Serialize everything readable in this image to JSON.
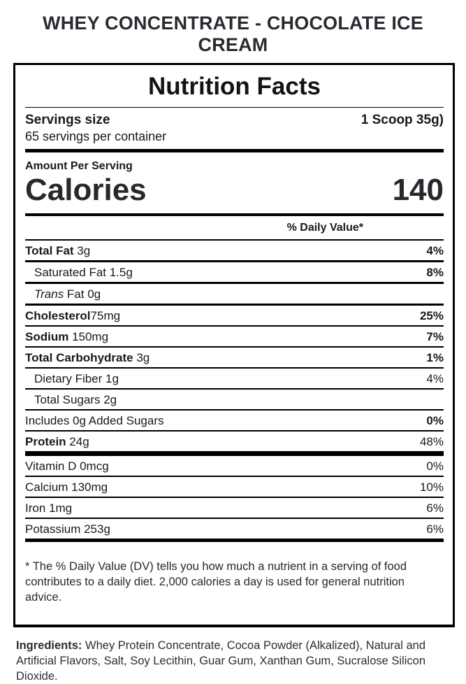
{
  "colors": {
    "background": "#ffffff",
    "text": "#17191c",
    "heading": "#282b30",
    "rule": "#000000"
  },
  "product_title": "WHEY CONCENTRATE - CHOCOLATE ICE CREAM",
  "label": {
    "title": "Nutrition Facts",
    "servings_size_label": "Servings size",
    "serving_size_value": "1 Scoop 35g)",
    "servings_per_container": "65 servings per container",
    "amount_per_serving": "Amount Per Serving",
    "calories_label": "Calories",
    "calories_value": "140",
    "daily_value_header": "% Daily Value*",
    "nutrient_rows": [
      {
        "lead": "Total Fat",
        "lead_bold": true,
        "lead_italic": false,
        "rest": " 3g",
        "dv": "4%",
        "dv_bold": true,
        "indent": false
      },
      {
        "lead": "Saturated Fat 1.5g",
        "lead_bold": false,
        "lead_italic": false,
        "rest": "",
        "dv": "8%",
        "dv_bold": true,
        "indent": true
      },
      {
        "lead": "Trans",
        "lead_bold": false,
        "lead_italic": true,
        "rest": " Fat 0g",
        "dv": "",
        "dv_bold": false,
        "indent": true
      },
      {
        "lead": "Cholesterol",
        "lead_bold": true,
        "lead_italic": false,
        "rest": "75mg",
        "dv": "25%",
        "dv_bold": true,
        "indent": false
      },
      {
        "lead": "Sodium",
        "lead_bold": true,
        "lead_italic": false,
        "rest": " 150mg",
        "dv": "7%",
        "dv_bold": true,
        "indent": false
      },
      {
        "lead": "Total Carbohydrate",
        "lead_bold": true,
        "lead_italic": false,
        "rest": " 3g",
        "dv": "1%",
        "dv_bold": true,
        "indent": false
      },
      {
        "lead": "Dietary Fiber 1g",
        "lead_bold": false,
        "lead_italic": false,
        "rest": "",
        "dv": "4%",
        "dv_bold": false,
        "indent": true
      },
      {
        "lead": "Total Sugars 2g",
        "lead_bold": false,
        "lead_italic": false,
        "rest": "",
        "dv": "",
        "dv_bold": false,
        "indent": true
      },
      {
        "lead": "Includes 0g Added Sugars",
        "lead_bold": false,
        "lead_italic": false,
        "rest": "",
        "dv": "0%",
        "dv_bold": true,
        "indent": false
      },
      {
        "lead": "Protein",
        "lead_bold": true,
        "lead_italic": false,
        "rest": " 24g",
        "dv": "48%",
        "dv_bold": false,
        "indent": false
      }
    ],
    "vitamin_rows": [
      {
        "lead": "Vitamin D 0mcg",
        "lead_bold": false,
        "lead_italic": false,
        "rest": "",
        "dv": "0%",
        "dv_bold": false,
        "indent": false
      },
      {
        "lead": "Calcium 130mg",
        "lead_bold": false,
        "lead_italic": false,
        "rest": "",
        "dv": "10%",
        "dv_bold": false,
        "indent": false
      },
      {
        "lead": "Iron 1mg",
        "lead_bold": false,
        "lead_italic": false,
        "rest": "",
        "dv": "6%",
        "dv_bold": false,
        "indent": false
      },
      {
        "lead": "Potassium 253g",
        "lead_bold": false,
        "lead_italic": false,
        "rest": "",
        "dv": "6%",
        "dv_bold": false,
        "indent": false
      }
    ],
    "footnote": "* The % Daily Value (DV) tells you how much a nutrient in a serving of food contributes to a daily diet. 2,000 calories a day is used for general nutrition advice."
  },
  "ingredients": {
    "label": "Ingredients:",
    "text": " Whey Protein Concentrate, Cocoa Powder (Alkalized), Natural and Artificial Flavors, Salt, Soy Lecithin, Guar Gum, Xanthan Gum, Sucralose Silicon Dioxide."
  }
}
